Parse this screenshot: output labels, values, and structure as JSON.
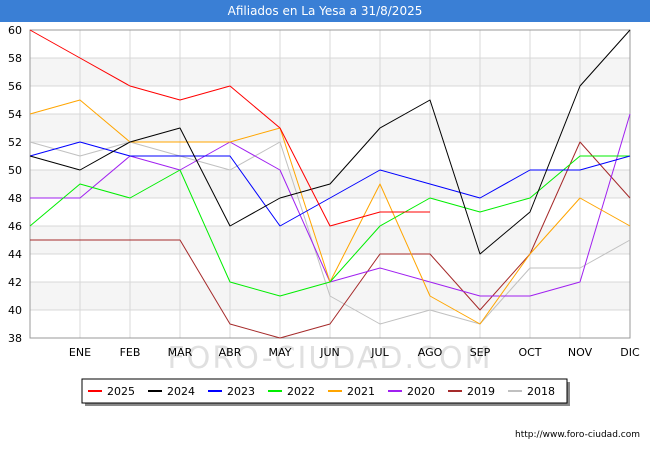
{
  "chart_data": {
    "type": "line",
    "title": "Afiliados en La Yesa a 31/8/2025",
    "categories": [
      "",
      "ENE",
      "FEB",
      "MAR",
      "ABR",
      "MAY",
      "JUN",
      "JUL",
      "AGO",
      "SEP",
      "OCT",
      "NOV",
      "DIC"
    ],
    "ylim": [
      38,
      60
    ],
    "yticks": [
      38,
      40,
      42,
      44,
      46,
      48,
      50,
      52,
      54,
      56,
      58,
      60
    ],
    "grid": true,
    "legend_position": "bottom",
    "series": [
      {
        "name": "2025",
        "color": "#ff0000",
        "values": [
          60,
          58,
          56,
          55,
          56,
          53,
          46,
          47,
          47,
          null,
          null,
          null,
          null
        ]
      },
      {
        "name": "2024",
        "color": "#000000",
        "values": [
          51,
          50,
          52,
          53,
          46,
          48,
          49,
          53,
          55,
          44,
          47,
          56,
          60
        ]
      },
      {
        "name": "2023",
        "color": "#0000ff",
        "values": [
          51,
          52,
          51,
          51,
          51,
          46,
          48,
          50,
          49,
          48,
          50,
          50,
          51
        ]
      },
      {
        "name": "2022",
        "color": "#00ee00",
        "values": [
          46,
          49,
          48,
          50,
          42,
          41,
          42,
          46,
          48,
          47,
          48,
          51,
          51
        ]
      },
      {
        "name": "2021",
        "color": "#ffa500",
        "values": [
          54,
          55,
          52,
          52,
          52,
          53,
          42,
          49,
          41,
          39,
          44,
          48,
          46
        ]
      },
      {
        "name": "2020",
        "color": "#a020f0",
        "values": [
          48,
          48,
          51,
          50,
          52,
          50,
          42,
          43,
          42,
          41,
          41,
          42,
          54
        ]
      },
      {
        "name": "2019",
        "color": "#a52a2a",
        "values": [
          45,
          45,
          45,
          45,
          39,
          38,
          39,
          44,
          44,
          40,
          44,
          52,
          48
        ]
      },
      {
        "name": "2018",
        "color": "#c0c0c0",
        "values": [
          52,
          51,
          52,
          51,
          50,
          52,
          41,
          39,
          40,
          39,
          43,
          43,
          45
        ]
      }
    ]
  },
  "watermark": "FORO-CIUDAD.COM",
  "footer": "http://www.foro-ciudad.com",
  "colors": {
    "title_bar": "#3a7fd5",
    "band": "#f5f5f5",
    "grid": "#d8d8d8"
  }
}
